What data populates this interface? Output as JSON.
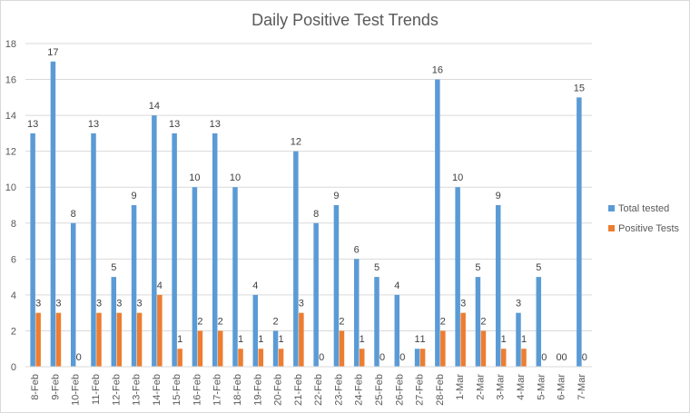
{
  "chart_data": {
    "type": "bar",
    "title": "Daily Positive Test Trends",
    "xlabel": "",
    "ylabel": "",
    "ylim": [
      0,
      18
    ],
    "yticks": [
      0,
      2,
      4,
      6,
      8,
      10,
      12,
      14,
      16,
      18
    ],
    "grid": true,
    "legend_position": "right",
    "categories": [
      "8-Feb",
      "9-Feb",
      "10-Feb",
      "11-Feb",
      "12-Feb",
      "13-Feb",
      "14-Feb",
      "15-Feb",
      "16-Feb",
      "17-Feb",
      "18-Feb",
      "19-Feb",
      "20-Feb",
      "21-Feb",
      "22-Feb",
      "23-Feb",
      "24-Feb",
      "25-Feb",
      "26-Feb",
      "27-Feb",
      "28-Feb",
      "1-Mar",
      "2-Mar",
      "3-Mar",
      "4-Mar",
      "5-Mar",
      "6-Mar",
      "7-Mar"
    ],
    "series": [
      {
        "name": "Total tested",
        "color": "#5b9bd5",
        "values": [
          13,
          17,
          8,
          13,
          5,
          9,
          14,
          13,
          10,
          13,
          10,
          4,
          2,
          12,
          8,
          9,
          6,
          5,
          4,
          1,
          16,
          10,
          5,
          9,
          3,
          5,
          0,
          15
        ]
      },
      {
        "name": "Positive Tests",
        "color": "#ed7d31",
        "values": [
          3,
          3,
          0,
          3,
          3,
          3,
          4,
          1,
          2,
          2,
          1,
          1,
          1,
          3,
          0,
          2,
          1,
          0,
          0,
          1,
          2,
          3,
          2,
          1,
          1,
          0,
          0,
          0
        ]
      }
    ]
  }
}
